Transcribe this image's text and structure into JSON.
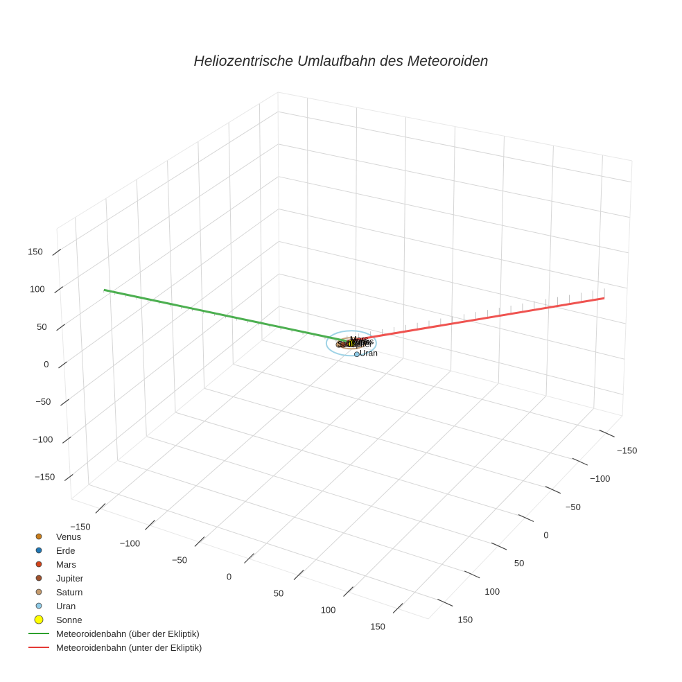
{
  "chart_data": {
    "type": "scatter3d",
    "title": "Heliozentrische Umlaufbahn des Meteoroiden",
    "axes": {
      "x": {
        "ticks": [
          -150,
          -100,
          -50,
          0,
          50,
          100,
          150
        ],
        "tick_labels": [
          "−150",
          "−100",
          "−50",
          "0",
          "50",
          "100",
          "150"
        ],
        "range": [
          -180,
          180
        ]
      },
      "y": {
        "ticks": [
          -150,
          -100,
          -50,
          0,
          50,
          100,
          150
        ],
        "tick_labels": [
          "−150",
          "−100",
          "−50",
          "0",
          "50",
          "100",
          "150"
        ],
        "range": [
          -180,
          180
        ]
      },
      "z": {
        "ticks": [
          -150,
          -100,
          -50,
          0,
          50,
          100,
          150
        ],
        "tick_labels": [
          "−150",
          "−100",
          "−50",
          "0",
          "50",
          "100",
          "150"
        ],
        "range": [
          -180,
          180
        ]
      },
      "grid": true
    },
    "bodies": [
      {
        "name": "Venus",
        "color": "#c97d1a",
        "orbit_radius": 0.72,
        "label": "Venus"
      },
      {
        "name": "Erde",
        "color": "#1f77b4",
        "orbit_radius": 1.0,
        "label": "Erde"
      },
      {
        "name": "Mars",
        "color": "#d2431a",
        "orbit_radius": 1.52,
        "label": "Mars"
      },
      {
        "name": "Jupiter",
        "color": "#a0522d",
        "orbit_radius": 5.2,
        "label": "Jupiter"
      },
      {
        "name": "Saturn",
        "color": "#c49a6c",
        "orbit_radius": 9.5,
        "label": "Saturn"
      },
      {
        "name": "Uran",
        "color": "#8ecae6",
        "orbit_radius": 19.2,
        "label": "Uran"
      },
      {
        "name": "Sonne",
        "color": "#ffff00",
        "orbit_radius": 0,
        "label": "Sonne"
      }
    ],
    "series": [
      {
        "name": "Meteoroidenbahn (über der Ekliptik)",
        "color": "#2ca02c",
        "start": [
          -180,
          110,
          60
        ],
        "end": [
          0,
          0,
          0
        ]
      },
      {
        "name": "Meteoroidenbahn (unter der Ekliptik)",
        "color": "#e53935",
        "start": [
          0,
          0,
          0
        ],
        "end": [
          180,
          -140,
          20
        ]
      }
    ],
    "legend_position": "bottom-left"
  },
  "legend": {
    "items": [
      {
        "label": "Venus",
        "color": "#c97d1a",
        "kind": "marker"
      },
      {
        "label": "Erde",
        "color": "#1f77b4",
        "kind": "marker"
      },
      {
        "label": "Mars",
        "color": "#d2431a",
        "kind": "marker"
      },
      {
        "label": "Jupiter",
        "color": "#a0522d",
        "kind": "marker"
      },
      {
        "label": "Saturn",
        "color": "#c49a6c",
        "kind": "marker"
      },
      {
        "label": "Uran",
        "color": "#8ecae6",
        "kind": "marker"
      },
      {
        "label": "Sonne",
        "color": "#ffff00",
        "kind": "big-marker"
      },
      {
        "label": "Meteoroidenbahn (über der Ekliptik)",
        "color": "#2ca02c",
        "kind": "line"
      },
      {
        "label": "Meteoroidenbahn (unter der Ekliptik)",
        "color": "#e53935",
        "kind": "line"
      }
    ]
  },
  "labels": {
    "overlap_labels": [
      "Saturn",
      "Jupiter",
      "Mars",
      "Venus",
      "Erde"
    ],
    "uran": "Uran"
  }
}
